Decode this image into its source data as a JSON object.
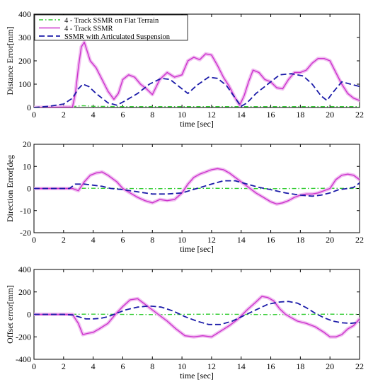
{
  "colors": {
    "flat": "#33cc33",
    "track": "#cc33cc",
    "track_glow": "#f0b8f0",
    "articulated": "#1a1aa8"
  },
  "chart_data": [
    {
      "type": "line",
      "xlabel": "time [sec]",
      "ylabel": "Distance Error[mm]",
      "xlim": [
        0,
        22
      ],
      "ylim": [
        0,
        400
      ],
      "xticks": [
        0,
        2,
        4,
        6,
        8,
        10,
        12,
        14,
        16,
        18,
        20,
        22
      ],
      "yticks": [
        0,
        100,
        200,
        300,
        400
      ],
      "grid": false,
      "legend_position": "top-left",
      "series": [
        {
          "name": "4 - Track SSMR on Flat Terrain",
          "style": "dash-dot",
          "color_key": "flat",
          "x": [
            0,
            2,
            2.8,
            3.3,
            4,
            6,
            10,
            14,
            18,
            22
          ],
          "y": [
            0,
            2,
            5,
            8,
            5,
            4,
            4,
            4,
            4,
            4
          ]
        },
        {
          "name": "4 - Track SSMR",
          "style": "solid",
          "color_key": "track",
          "x": [
            0,
            2.6,
            2.8,
            3.0,
            3.2,
            3.4,
            3.6,
            3.8,
            4.2,
            4.6,
            5.0,
            5.4,
            5.7,
            6.0,
            6.4,
            6.8,
            7.2,
            7.6,
            8.0,
            8.5,
            9.0,
            9.5,
            10.0,
            10.4,
            10.8,
            11.2,
            11.6,
            12.0,
            12.4,
            12.8,
            13.2,
            13.6,
            13.9,
            14.2,
            14.5,
            14.8,
            15.2,
            15.6,
            16.0,
            16.4,
            16.8,
            17.2,
            17.6,
            18.0,
            18.4,
            18.8,
            19.2,
            19.6,
            20.0,
            20.4,
            20.8,
            21.2,
            21.6,
            22.0
          ],
          "y": [
            0,
            2,
            60,
            170,
            260,
            280,
            240,
            200,
            170,
            120,
            70,
            35,
            60,
            120,
            140,
            130,
            100,
            80,
            55,
            120,
            150,
            130,
            140,
            200,
            215,
            205,
            230,
            225,
            180,
            130,
            90,
            40,
            10,
            50,
            110,
            160,
            150,
            120,
            110,
            85,
            80,
            120,
            150,
            150,
            160,
            190,
            210,
            210,
            200,
            150,
            100,
            60,
            40,
            30
          ]
        },
        {
          "name": "SSMR with Articulated Suspension",
          "style": "dashed",
          "color_key": "articulated",
          "x": [
            0,
            1.0,
            2.0,
            2.6,
            3.0,
            3.3,
            3.7,
            4.2,
            5.0,
            5.6,
            6.2,
            7.0,
            7.8,
            8.6,
            9.2,
            9.8,
            10.4,
            11.0,
            11.8,
            12.4,
            13.0,
            13.6,
            14.0,
            14.4,
            15.0,
            15.8,
            16.6,
            17.4,
            18.2,
            18.8,
            19.4,
            19.8,
            20.2,
            20.8,
            21.4,
            22.0
          ],
          "y": [
            0,
            5,
            15,
            40,
            80,
            100,
            90,
            60,
            20,
            10,
            30,
            60,
            100,
            125,
            120,
            90,
            60,
            95,
            130,
            125,
            95,
            40,
            5,
            20,
            60,
            100,
            140,
            145,
            135,
            100,
            50,
            30,
            65,
            110,
            100,
            90
          ]
        }
      ]
    },
    {
      "type": "line",
      "xlabel": "time [sec]",
      "ylabel": "Direction Error[deg",
      "xlim": [
        0,
        22
      ],
      "ylim": [
        -20,
        20
      ],
      "xticks": [
        0,
        2,
        4,
        6,
        8,
        10,
        12,
        14,
        16,
        18,
        20,
        22
      ],
      "yticks": [
        -20,
        -10,
        0,
        10,
        20
      ],
      "grid": false,
      "series": [
        {
          "name": "4 - Track SSMR on Flat Terrain",
          "style": "dash-dot",
          "color_key": "flat",
          "x": [
            0,
            4,
            8,
            12,
            16,
            20,
            22
          ],
          "y": [
            0,
            0.1,
            -0.1,
            0.1,
            -0.1,
            0.1,
            0
          ]
        },
        {
          "name": "4 - Track SSMR",
          "style": "solid",
          "color_key": "track",
          "x": [
            0,
            2.6,
            3.0,
            3.4,
            3.8,
            4.2,
            4.6,
            5.0,
            5.6,
            6.0,
            6.5,
            7.0,
            7.5,
            8.0,
            8.5,
            9.0,
            9.5,
            10.0,
            10.4,
            10.8,
            11.2,
            11.6,
            12.0,
            12.4,
            12.8,
            13.2,
            13.6,
            14.0,
            14.6,
            15.0,
            15.5,
            16.0,
            16.4,
            16.8,
            17.2,
            17.6,
            18.0,
            18.4,
            18.8,
            19.2,
            19.6,
            20.0,
            20.4,
            20.8,
            21.2,
            21.6,
            22.0
          ],
          "y": [
            0,
            0,
            -1,
            3,
            6,
            7,
            7.5,
            6,
            3,
            0,
            -2,
            -4,
            -5.5,
            -6.5,
            -5,
            -5.5,
            -5,
            -2,
            2,
            5,
            6.5,
            7.5,
            8.5,
            9,
            8.5,
            7,
            5,
            3,
            0,
            -2,
            -4,
            -6,
            -7,
            -6.5,
            -5.5,
            -4,
            -3,
            -2.5,
            -2.5,
            -2,
            -1,
            0,
            4,
            6,
            6.5,
            6,
            4
          ]
        },
        {
          "name": "SSMR with Articulated Suspension",
          "style": "dashed",
          "color_key": "articulated",
          "x": [
            0,
            2.4,
            2.8,
            3.4,
            4.0,
            4.6,
            5.2,
            6.0,
            7.0,
            8.0,
            9.0,
            10.0,
            11.0,
            12.0,
            12.8,
            13.6,
            14.4,
            15.2,
            16.0,
            17.0,
            18.0,
            18.8,
            19.4,
            20.0,
            20.6,
            21.2,
            21.6,
            22.0
          ],
          "y": [
            0,
            0,
            2,
            2,
            1.5,
            1,
            0,
            -0.5,
            -1.5,
            -2.5,
            -2.5,
            -2,
            0,
            2,
            3.5,
            3.5,
            2,
            0.5,
            -0.5,
            -2,
            -3,
            -3.5,
            -3,
            -2,
            -0.5,
            0,
            0.5,
            2.5
          ]
        }
      ]
    },
    {
      "type": "line",
      "xlabel": "time [sec]",
      "ylabel": "Offset error[mm]",
      "xlim": [
        0,
        22
      ],
      "ylim": [
        -400,
        400
      ],
      "xticks": [
        0,
        2,
        4,
        6,
        8,
        10,
        12,
        14,
        16,
        18,
        20,
        22
      ],
      "yticks": [
        -400,
        -200,
        0,
        200,
        400
      ],
      "grid": false,
      "series": [
        {
          "name": "4 - Track SSMR on Flat Terrain",
          "style": "dash-dot",
          "color_key": "flat",
          "x": [
            0,
            4,
            8,
            12,
            16,
            20,
            22
          ],
          "y": [
            0,
            2,
            -2,
            2,
            -2,
            2,
            0
          ]
        },
        {
          "name": "4 - Track SSMR",
          "style": "solid",
          "color_key": "track",
          "x": [
            0,
            2.6,
            3.0,
            3.3,
            3.6,
            4.0,
            4.4,
            5.0,
            5.5,
            6.0,
            6.5,
            7.0,
            7.4,
            7.8,
            8.4,
            9.0,
            9.6,
            10.2,
            10.8,
            11.4,
            12.0,
            12.6,
            13.2,
            13.8,
            14.4,
            15.0,
            15.4,
            15.8,
            16.2,
            16.6,
            17.0,
            17.4,
            17.8,
            18.4,
            19.0,
            19.6,
            20.0,
            20.4,
            20.8,
            21.2,
            21.6,
            22.0
          ],
          "y": [
            0,
            0,
            -80,
            -180,
            -170,
            -160,
            -130,
            -80,
            0,
            70,
            130,
            140,
            100,
            60,
            0,
            -60,
            -130,
            -190,
            -200,
            -190,
            -200,
            -150,
            -100,
            -40,
            40,
            110,
            160,
            150,
            120,
            50,
            0,
            -30,
            -60,
            -80,
            -110,
            -160,
            -200,
            -200,
            -180,
            -130,
            -100,
            -40
          ]
        },
        {
          "name": "SSMR with Articulated Suspension",
          "style": "dashed",
          "color_key": "articulated",
          "x": [
            0,
            2.0,
            2.6,
            3.0,
            3.5,
            4.0,
            4.5,
            5.0,
            5.6,
            6.2,
            7.0,
            7.8,
            8.6,
            9.4,
            10.2,
            11.0,
            11.8,
            12.6,
            13.4,
            14.2,
            15.0,
            15.8,
            16.6,
            17.2,
            17.8,
            18.4,
            19.0,
            19.6,
            20.2,
            20.8,
            21.4,
            22.0
          ],
          "y": [
            0,
            0,
            -5,
            -20,
            -40,
            -40,
            -35,
            -20,
            10,
            40,
            65,
            75,
            65,
            30,
            -20,
            -60,
            -90,
            -90,
            -60,
            -10,
            40,
            90,
            110,
            115,
            100,
            60,
            10,
            -30,
            -60,
            -75,
            -80,
            -70
          ]
        }
      ]
    }
  ]
}
